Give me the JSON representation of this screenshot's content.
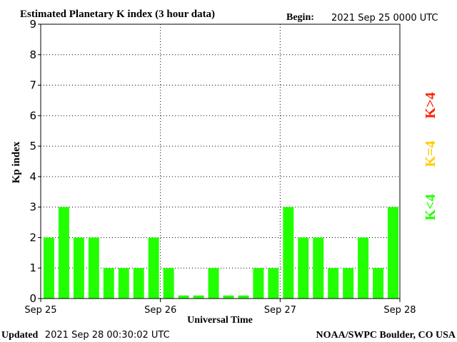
{
  "header": {
    "title": "Estimated Planetary K index (3 hour data)",
    "begin_label": "Begin:",
    "begin_value": "2021 Sep 25 0000 UTC"
  },
  "footer": {
    "updated_label": "Updated",
    "updated_value": "2021 Sep 28 00:30:02 UTC",
    "credit": "NOAA/SWPC Boulder, CO USA"
  },
  "legend": {
    "high": "K>4",
    "equal": "K=4",
    "low": "K<4"
  },
  "colors": {
    "bar": "#22ff00",
    "high": "#ff2200",
    "equal": "#ffcc00",
    "low": "#22ff00",
    "grid": "#000000"
  },
  "chart_data": {
    "type": "bar",
    "title": "Estimated Planetary K index (3 hour data)",
    "xlabel": "Universal Time",
    "ylabel": "Kp index",
    "ylim": [
      0,
      9
    ],
    "yticks": [
      "0",
      "1",
      "2",
      "3",
      "4",
      "5",
      "6",
      "7",
      "8",
      "9"
    ],
    "xticks": [
      "Sep 25",
      "Sep 26",
      "Sep 27",
      "Sep 28"
    ],
    "grid": true,
    "values": [
      2,
      3,
      2,
      2,
      1,
      1,
      1,
      2,
      1,
      0.1,
      0.1,
      1,
      0.1,
      0.1,
      1,
      1,
      3,
      2,
      2,
      1,
      1,
      2,
      1,
      3
    ]
  }
}
